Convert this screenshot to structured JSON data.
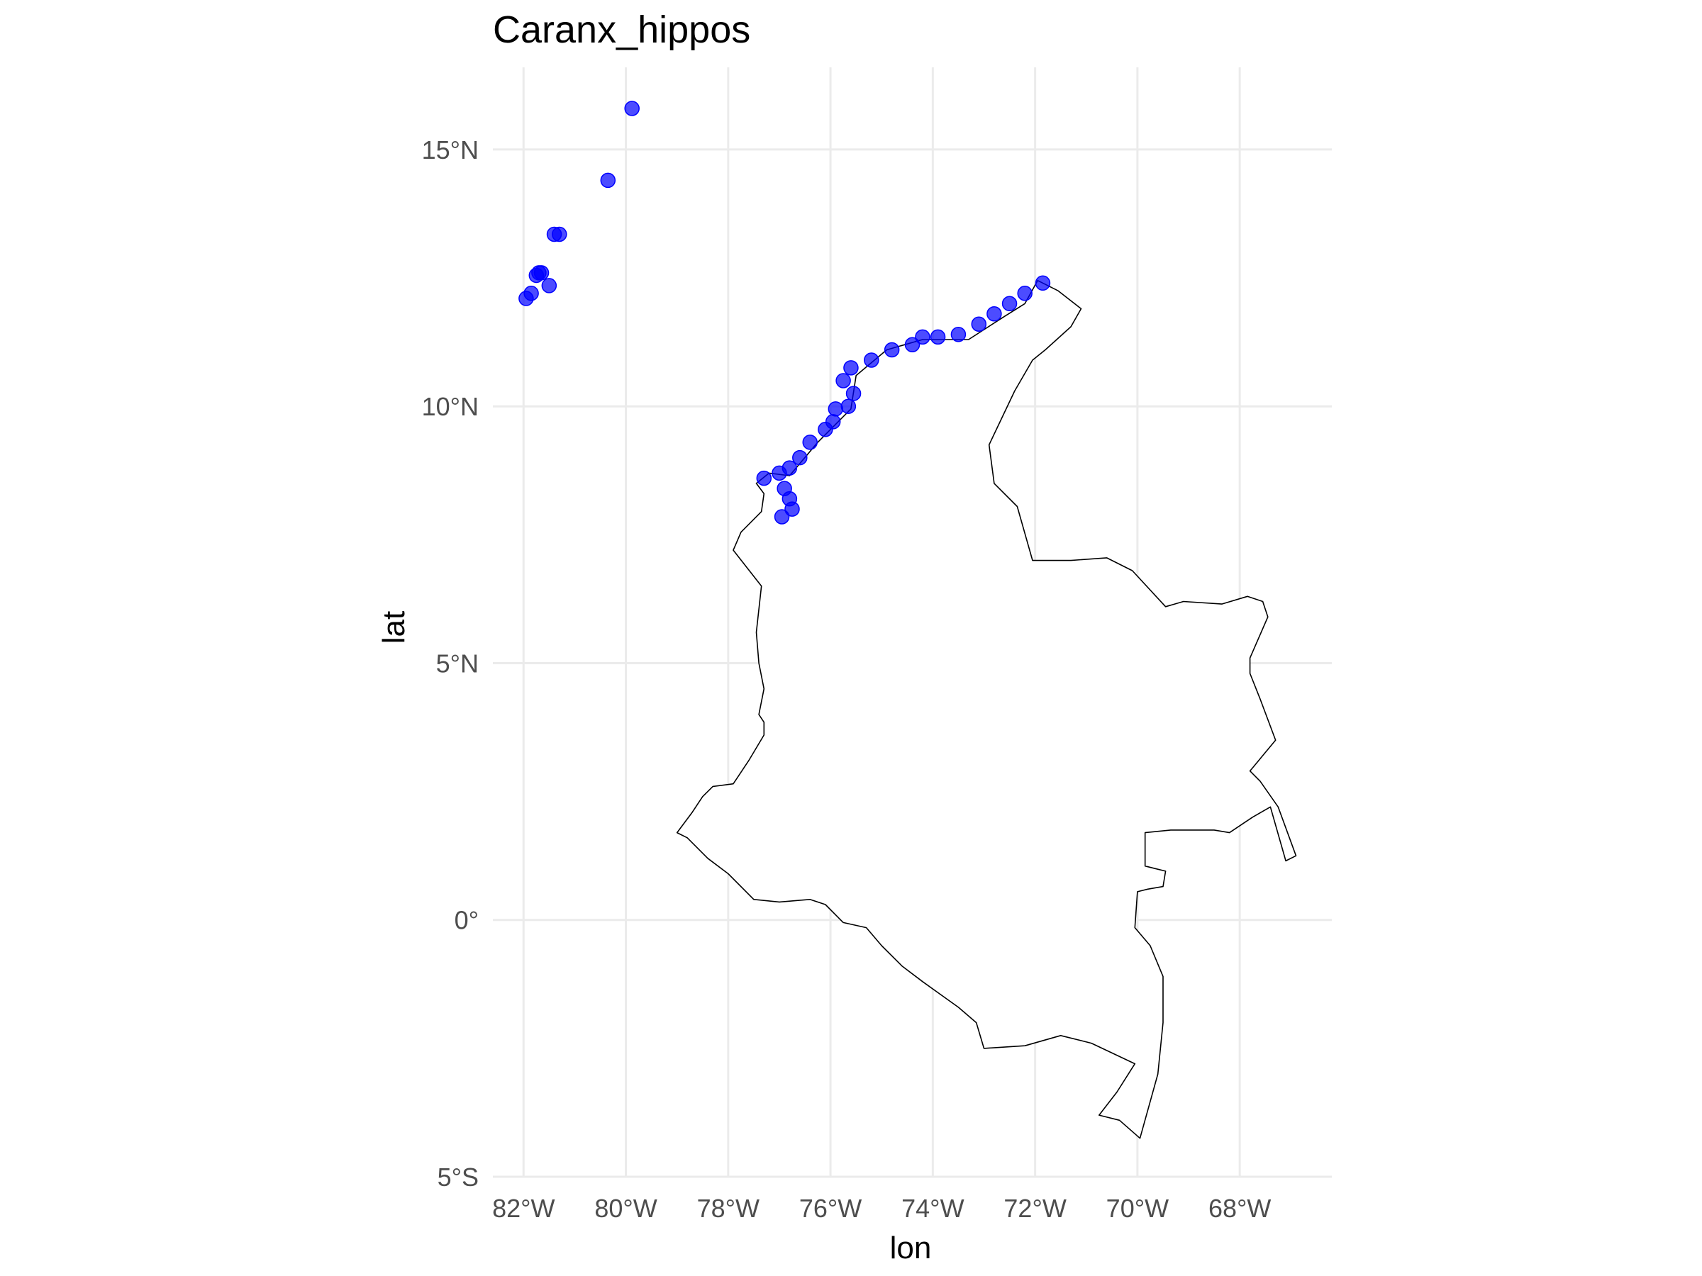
{
  "chart_data": {
    "type": "scatter",
    "title": "Caranx_hippos",
    "xlabel": "lon",
    "ylabel": "lat",
    "xlim": [
      -82.6,
      -66.2
    ],
    "ylim": [
      -5.0,
      16.6
    ],
    "x_ticks": [
      -82,
      -80,
      -78,
      -76,
      -74,
      -72,
      -70,
      -68
    ],
    "x_tick_labels": [
      "82°W",
      "80°W",
      "78°W",
      "76°W",
      "74°W",
      "72°W",
      "70°W",
      "68°W"
    ],
    "y_ticks": [
      15,
      10,
      5,
      0,
      -5
    ],
    "y_tick_labels": [
      "15°N",
      "10°N",
      "5°N",
      "0°",
      "5°S"
    ],
    "grid": true,
    "point_color": "#0000ff",
    "point_opacity": 0.7,
    "country_outline": {
      "name": "Colombia",
      "lonlat": [
        [
          -71.95,
          12.45
        ],
        [
          -71.55,
          12.25
        ],
        [
          -71.1,
          11.9
        ],
        [
          -71.3,
          11.55
        ],
        [
          -71.8,
          11.1
        ],
        [
          -72.05,
          10.9
        ],
        [
          -72.4,
          10.3
        ],
        [
          -72.9,
          9.25
        ],
        [
          -72.8,
          8.5
        ],
        [
          -72.35,
          8.05
        ],
        [
          -72.05,
          7.0
        ],
        [
          -71.3,
          7.0
        ],
        [
          -70.6,
          7.05
        ],
        [
          -70.1,
          6.8
        ],
        [
          -69.45,
          6.1
        ],
        [
          -69.1,
          6.2
        ],
        [
          -68.35,
          6.15
        ],
        [
          -67.85,
          6.3
        ],
        [
          -67.55,
          6.2
        ],
        [
          -67.45,
          5.9
        ],
        [
          -67.8,
          5.1
        ],
        [
          -67.8,
          4.8
        ],
        [
          -67.6,
          4.3
        ],
        [
          -67.3,
          3.5
        ],
        [
          -67.8,
          2.9
        ],
        [
          -67.6,
          2.7
        ],
        [
          -67.25,
          2.2
        ],
        [
          -66.9,
          1.25
        ],
        [
          -67.1,
          1.15
        ],
        [
          -67.4,
          2.2
        ],
        [
          -67.75,
          2.0
        ],
        [
          -68.2,
          1.7
        ],
        [
          -68.5,
          1.75
        ],
        [
          -69.35,
          1.75
        ],
        [
          -69.85,
          1.7
        ],
        [
          -69.85,
          1.05
        ],
        [
          -69.65,
          1.0
        ],
        [
          -69.45,
          0.95
        ],
        [
          -69.5,
          0.65
        ],
        [
          -69.8,
          0.6
        ],
        [
          -70.0,
          0.55
        ],
        [
          -70.05,
          -0.15
        ],
        [
          -69.75,
          -0.5
        ],
        [
          -69.5,
          -1.1
        ],
        [
          -69.5,
          -2.0
        ],
        [
          -69.6,
          -3.0
        ],
        [
          -69.95,
          -4.25
        ],
        [
          -70.35,
          -3.9
        ],
        [
          -70.75,
          -3.8
        ],
        [
          -70.4,
          -3.35
        ],
        [
          -70.05,
          -2.8
        ],
        [
          -70.9,
          -2.4
        ],
        [
          -71.5,
          -2.25
        ],
        [
          -72.2,
          -2.45
        ],
        [
          -73.0,
          -2.5
        ],
        [
          -73.15,
          -2.0
        ],
        [
          -73.5,
          -1.7
        ],
        [
          -74.2,
          -1.2
        ],
        [
          -74.6,
          -0.9
        ],
        [
          -75.0,
          -0.5
        ],
        [
          -75.3,
          -0.15
        ],
        [
          -75.75,
          -0.05
        ],
        [
          -76.1,
          0.3
        ],
        [
          -76.4,
          0.4
        ],
        [
          -77.0,
          0.35
        ],
        [
          -77.5,
          0.4
        ],
        [
          -78.0,
          0.9
        ],
        [
          -78.4,
          1.2
        ],
        [
          -78.8,
          1.6
        ],
        [
          -79.0,
          1.7
        ],
        [
          -78.7,
          2.1
        ],
        [
          -78.5,
          2.4
        ],
        [
          -78.3,
          2.6
        ],
        [
          -77.9,
          2.65
        ],
        [
          -77.6,
          3.1
        ],
        [
          -77.3,
          3.6
        ],
        [
          -77.3,
          3.85
        ],
        [
          -77.4,
          4.0
        ],
        [
          -77.3,
          4.5
        ],
        [
          -77.4,
          5.0
        ],
        [
          -77.45,
          5.6
        ],
        [
          -77.35,
          6.5
        ],
        [
          -77.9,
          7.2
        ],
        [
          -77.75,
          7.55
        ],
        [
          -77.35,
          7.95
        ],
        [
          -77.3,
          8.3
        ],
        [
          -77.45,
          8.5
        ],
        [
          -77.2,
          8.7
        ],
        [
          -76.8,
          8.65
        ],
        [
          -76.25,
          9.3
        ],
        [
          -75.6,
          9.95
        ],
        [
          -75.5,
          10.6
        ],
        [
          -74.9,
          11.1
        ],
        [
          -74.2,
          11.3
        ],
        [
          -73.3,
          11.3
        ],
        [
          -72.6,
          11.75
        ],
        [
          -72.2,
          12.0
        ],
        [
          -71.95,
          12.45
        ]
      ]
    },
    "series": [
      {
        "x": [
          -79.88,
          -80.35,
          -81.3,
          -81.4,
          -81.7,
          -81.75,
          -81.65,
          -81.5,
          -81.85,
          -81.95,
          -71.85,
          -72.2,
          -72.5,
          -72.8,
          -73.1,
          -73.5,
          -73.9,
          -74.2,
          -74.4,
          -74.8,
          -75.2,
          -75.6,
          -75.75,
          -75.55,
          -75.65,
          -75.9,
          -75.95,
          -76.1,
          -76.4,
          -76.6,
          -76.8,
          -77.0,
          -77.3,
          -76.9,
          -76.8,
          -76.75,
          -76.95
        ],
        "y": [
          15.8,
          14.4,
          13.35,
          13.35,
          12.6,
          12.55,
          12.6,
          12.35,
          12.2,
          12.1,
          12.4,
          12.2,
          12.0,
          11.8,
          11.6,
          11.4,
          11.35,
          11.35,
          11.2,
          11.1,
          10.9,
          10.75,
          10.5,
          10.25,
          10.0,
          9.95,
          9.7,
          9.55,
          9.3,
          9.0,
          8.8,
          8.7,
          8.6,
          8.4,
          8.2,
          8.0,
          7.85
        ]
      }
    ]
  }
}
